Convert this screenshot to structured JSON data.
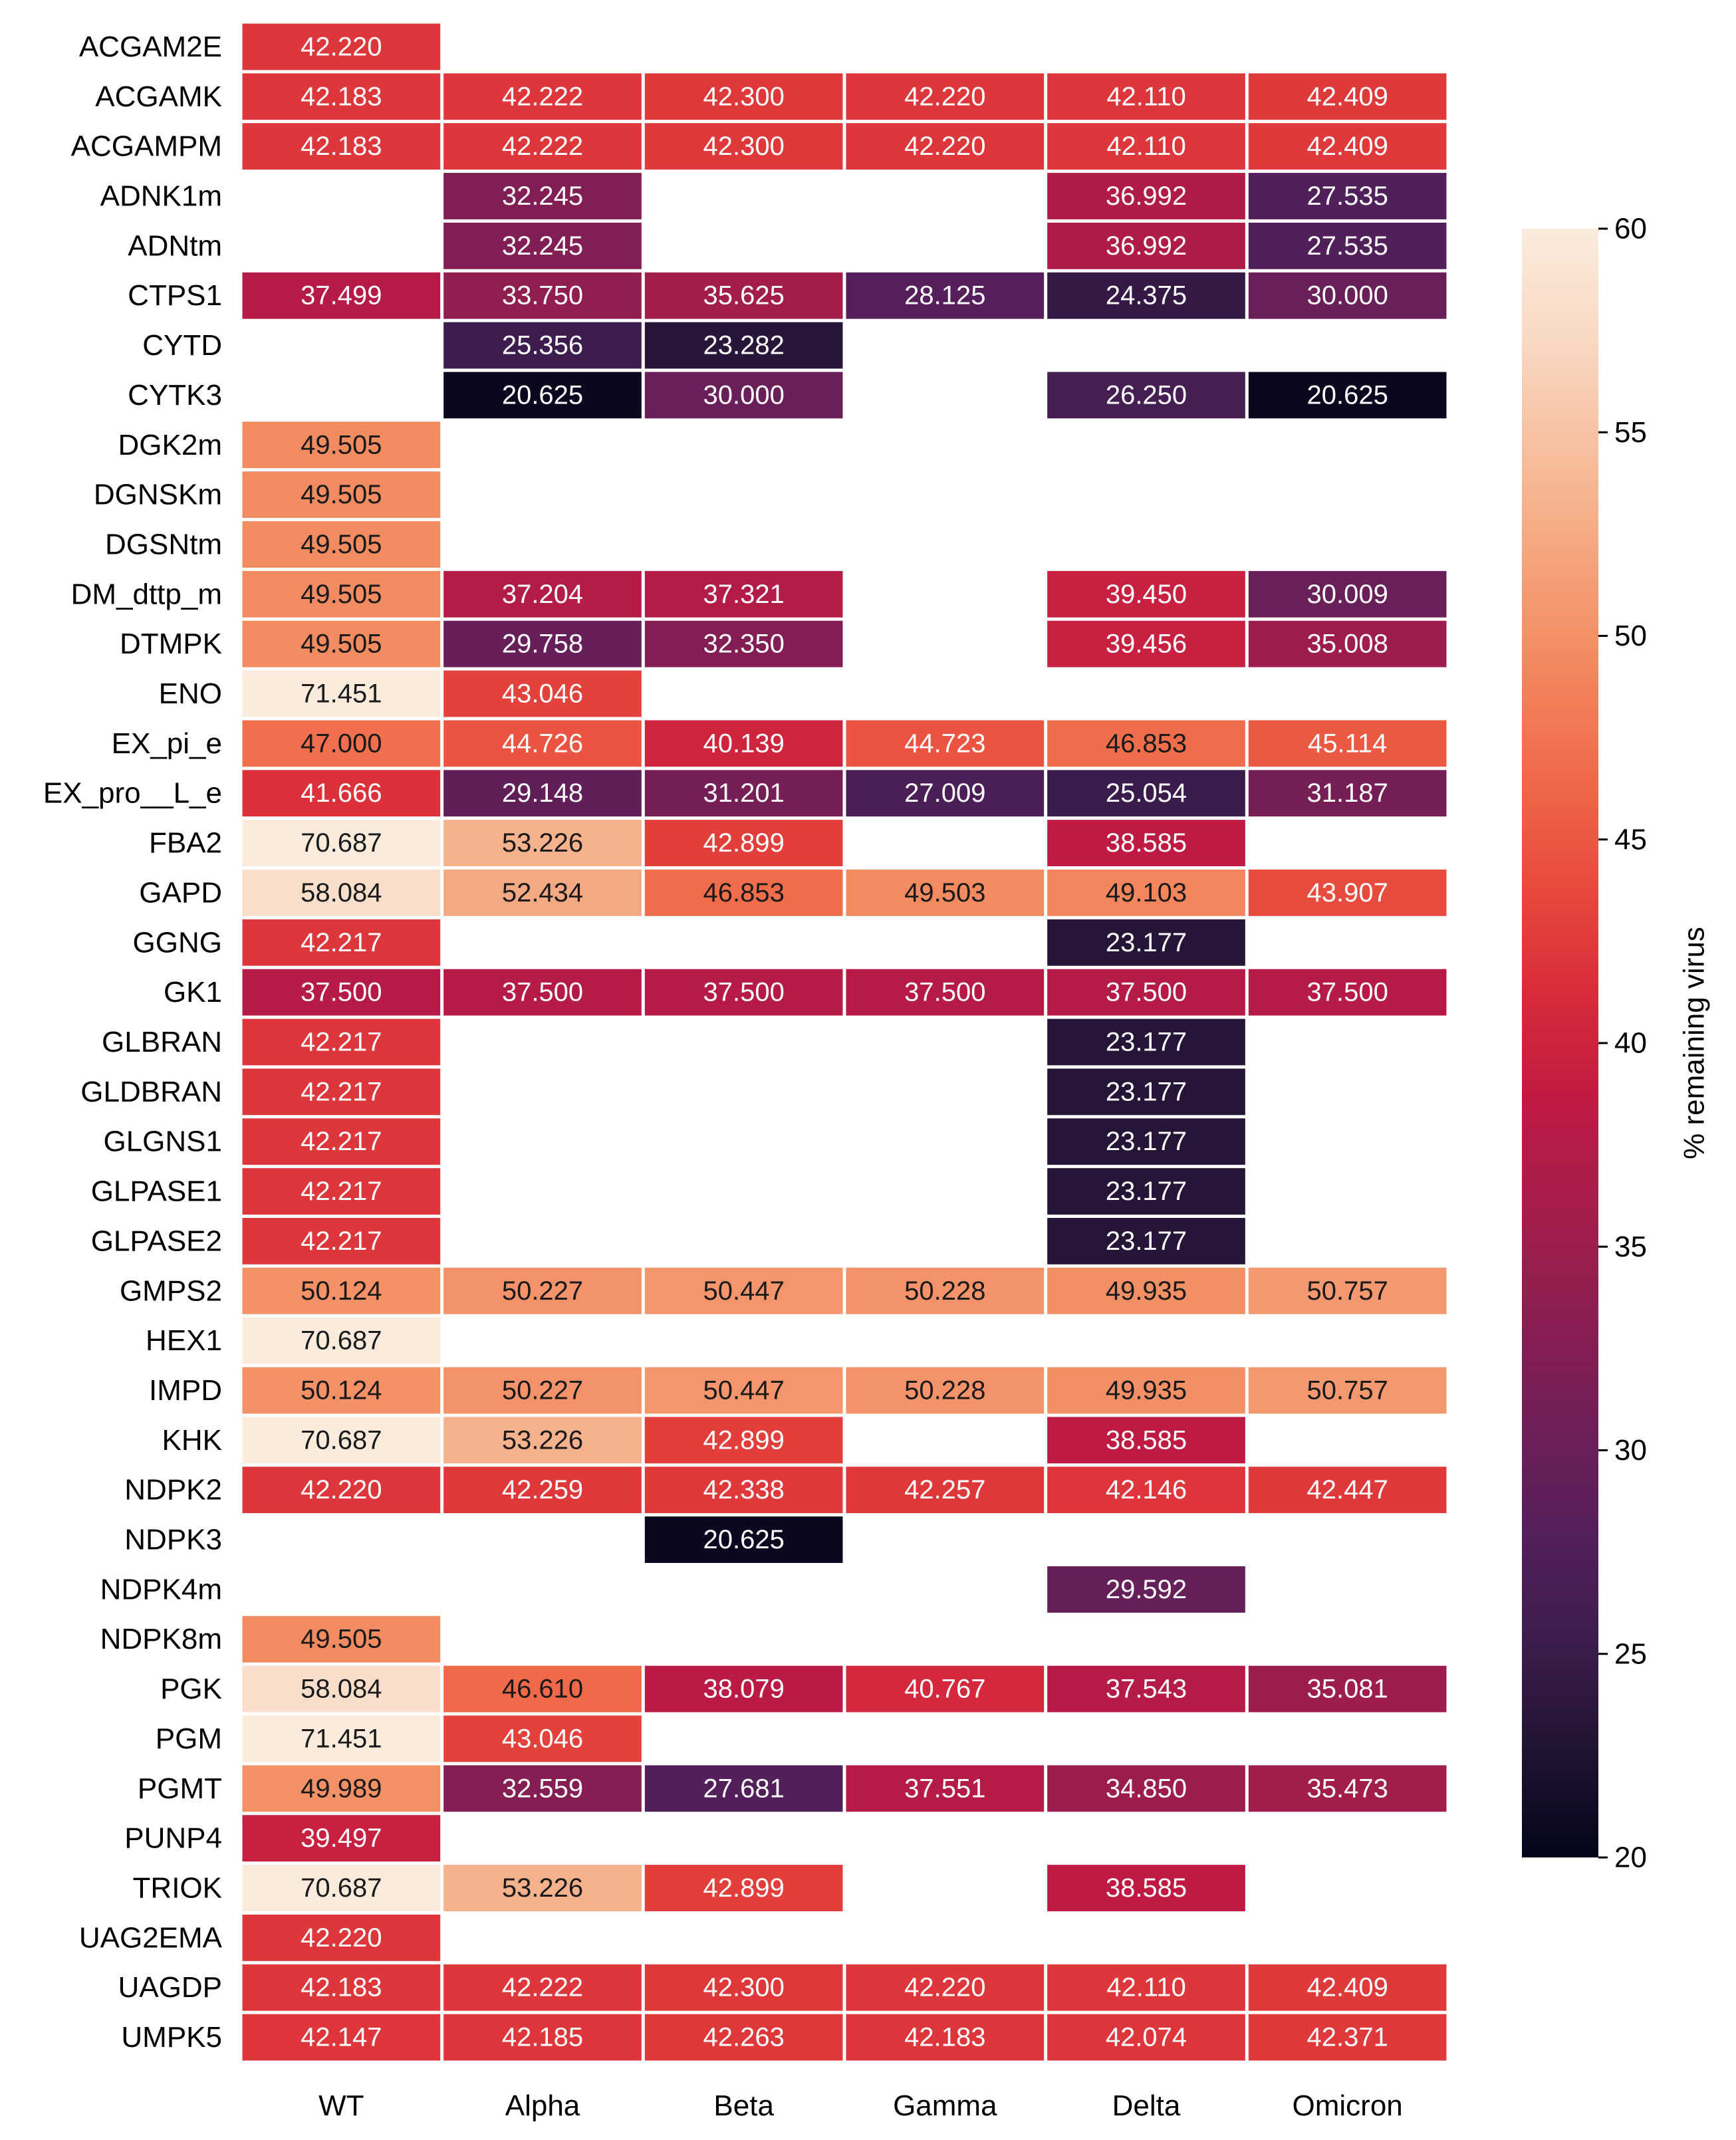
{
  "chart_data": {
    "type": "heatmap",
    "title": "",
    "xlabel": "",
    "ylabel": "",
    "columns": [
      "WT",
      "Alpha",
      "Beta",
      "Gamma",
      "Delta",
      "Omicron"
    ],
    "rows": [
      {
        "label": "ACGAM2E",
        "values": [
          42.22,
          null,
          null,
          null,
          null,
          null
        ],
        "text": [
          "42.220",
          "",
          "",
          "",
          "",
          ""
        ]
      },
      {
        "label": "ACGAMK",
        "values": [
          42.183,
          42.222,
          42.3,
          42.22,
          42.11,
          42.409
        ],
        "text": [
          "42.183",
          "42.222",
          "42.300",
          "42.220",
          "42.110",
          "42.409"
        ]
      },
      {
        "label": "ACGAMPM",
        "values": [
          42.183,
          42.222,
          42.3,
          42.22,
          42.11,
          42.409
        ],
        "text": [
          "42.183",
          "42.222",
          "42.300",
          "42.220",
          "42.110",
          "42.409"
        ]
      },
      {
        "label": "ADNK1m",
        "values": [
          null,
          32.245,
          null,
          null,
          36.992,
          27.535
        ],
        "text": [
          "",
          "32.245",
          "",
          "",
          "36.992",
          "27.535"
        ]
      },
      {
        "label": "ADNtm",
        "values": [
          null,
          32.245,
          null,
          null,
          36.992,
          27.535
        ],
        "text": [
          "",
          "32.245",
          "",
          "",
          "36.992",
          "27.535"
        ]
      },
      {
        "label": "CTPS1",
        "values": [
          37.499,
          33.75,
          35.625,
          28.125,
          24.375,
          30.0
        ],
        "text": [
          "37.499",
          "33.750",
          "35.625",
          "28.125",
          "24.375",
          "30.000"
        ]
      },
      {
        "label": "CYTD",
        "values": [
          null,
          25.356,
          23.282,
          null,
          null,
          null
        ],
        "text": [
          "",
          "25.356",
          "23.282",
          "",
          "",
          ""
        ]
      },
      {
        "label": "CYTK3",
        "values": [
          null,
          20.625,
          30.0,
          null,
          26.25,
          20.625
        ],
        "text": [
          "",
          "20.625",
          "30.000",
          "",
          "26.250",
          "20.625"
        ]
      },
      {
        "label": "DGK2m",
        "values": [
          49.505,
          null,
          null,
          null,
          null,
          null
        ],
        "text": [
          "49.505",
          "",
          "",
          "",
          "",
          ""
        ]
      },
      {
        "label": "DGNSKm",
        "values": [
          49.505,
          null,
          null,
          null,
          null,
          null
        ],
        "text": [
          "49.505",
          "",
          "",
          "",
          "",
          ""
        ]
      },
      {
        "label": "DGSNtm",
        "values": [
          49.505,
          null,
          null,
          null,
          null,
          null
        ],
        "text": [
          "49.505",
          "",
          "",
          "",
          "",
          ""
        ]
      },
      {
        "label": "DM_dttp_m",
        "values": [
          49.505,
          37.204,
          37.321,
          null,
          39.45,
          30.009
        ],
        "text": [
          "49.505",
          "37.204",
          "37.321",
          "",
          "39.450",
          "30.009"
        ]
      },
      {
        "label": "DTMPK",
        "values": [
          49.505,
          29.758,
          32.35,
          null,
          39.456,
          35.008
        ],
        "text": [
          "49.505",
          "29.758",
          "32.350",
          "",
          "39.456",
          "35.008"
        ]
      },
      {
        "label": "ENO",
        "values": [
          71.451,
          43.046,
          null,
          null,
          null,
          null
        ],
        "text": [
          "71.451",
          "43.046",
          "",
          "",
          "",
          ""
        ]
      },
      {
        "label": "EX_pi_e",
        "values": [
          47.0,
          44.726,
          40.139,
          44.723,
          46.853,
          45.114
        ],
        "text": [
          "47.000",
          "44.726",
          "40.139",
          "44.723",
          "46.853",
          "45.114"
        ]
      },
      {
        "label": "EX_pro__L_e",
        "values": [
          41.666,
          29.148,
          31.201,
          27.009,
          25.054,
          31.187
        ],
        "text": [
          "41.666",
          "29.148",
          "31.201",
          "27.009",
          "25.054",
          "31.187"
        ]
      },
      {
        "label": "FBA2",
        "values": [
          70.687,
          53.226,
          42.899,
          null,
          38.585,
          null
        ],
        "text": [
          "70.687",
          "53.226",
          "42.899",
          "",
          "38.585",
          ""
        ]
      },
      {
        "label": "GAPD",
        "values": [
          58.084,
          52.434,
          46.853,
          49.503,
          49.103,
          43.907
        ],
        "text": [
          "58.084",
          "52.434",
          "46.853",
          "49.503",
          "49.103",
          "43.907"
        ]
      },
      {
        "label": "GGNG",
        "values": [
          42.217,
          null,
          null,
          null,
          23.177,
          null
        ],
        "text": [
          "42.217",
          "",
          "",
          "",
          "23.177",
          ""
        ]
      },
      {
        "label": "GK1",
        "values": [
          37.5,
          37.5,
          37.5,
          37.5,
          37.5,
          37.5
        ],
        "text": [
          "37.500",
          "37.500",
          "37.500",
          "37.500",
          "37.500",
          "37.500"
        ]
      },
      {
        "label": "GLBRAN",
        "values": [
          42.217,
          null,
          null,
          null,
          23.177,
          null
        ],
        "text": [
          "42.217",
          "",
          "",
          "",
          "23.177",
          ""
        ]
      },
      {
        "label": "GLDBRAN",
        "values": [
          42.217,
          null,
          null,
          null,
          23.177,
          null
        ],
        "text": [
          "42.217",
          "",
          "",
          "",
          "23.177",
          ""
        ]
      },
      {
        "label": "GLGNS1",
        "values": [
          42.217,
          null,
          null,
          null,
          23.177,
          null
        ],
        "text": [
          "42.217",
          "",
          "",
          "",
          "23.177",
          ""
        ]
      },
      {
        "label": "GLPASE1",
        "values": [
          42.217,
          null,
          null,
          null,
          23.177,
          null
        ],
        "text": [
          "42.217",
          "",
          "",
          "",
          "23.177",
          ""
        ]
      },
      {
        "label": "GLPASE2",
        "values": [
          42.217,
          null,
          null,
          null,
          23.177,
          null
        ],
        "text": [
          "42.217",
          "",
          "",
          "",
          "23.177",
          ""
        ]
      },
      {
        "label": "GMPS2",
        "values": [
          50.124,
          50.227,
          50.447,
          50.228,
          49.935,
          50.757
        ],
        "text": [
          "50.124",
          "50.227",
          "50.447",
          "50.228",
          "49.935",
          "50.757"
        ]
      },
      {
        "label": "HEX1",
        "values": [
          70.687,
          null,
          null,
          null,
          null,
          null
        ],
        "text": [
          "70.687",
          "",
          "",
          "",
          "",
          ""
        ]
      },
      {
        "label": "IMPD",
        "values": [
          50.124,
          50.227,
          50.447,
          50.228,
          49.935,
          50.757
        ],
        "text": [
          "50.124",
          "50.227",
          "50.447",
          "50.228",
          "49.935",
          "50.757"
        ]
      },
      {
        "label": "KHK",
        "values": [
          70.687,
          53.226,
          42.899,
          null,
          38.585,
          null
        ],
        "text": [
          "70.687",
          "53.226",
          "42.899",
          "",
          "38.585",
          ""
        ]
      },
      {
        "label": "NDPK2",
        "values": [
          42.22,
          42.259,
          42.338,
          42.257,
          42.146,
          42.447
        ],
        "text": [
          "42.220",
          "42.259",
          "42.338",
          "42.257",
          "42.146",
          "42.447"
        ]
      },
      {
        "label": "NDPK3",
        "values": [
          null,
          null,
          20.625,
          null,
          null,
          null
        ],
        "text": [
          "",
          "",
          "20.625",
          "",
          "",
          ""
        ]
      },
      {
        "label": "NDPK4m",
        "values": [
          null,
          null,
          null,
          null,
          29.592,
          null
        ],
        "text": [
          "",
          "",
          "",
          "",
          "29.592",
          ""
        ]
      },
      {
        "label": "NDPK8m",
        "values": [
          49.505,
          null,
          null,
          null,
          null,
          null
        ],
        "text": [
          "49.505",
          "",
          "",
          "",
          "",
          ""
        ]
      },
      {
        "label": "PGK",
        "values": [
          58.084,
          46.61,
          38.079,
          40.767,
          37.543,
          35.081
        ],
        "text": [
          "58.084",
          "46.610",
          "38.079",
          "40.767",
          "37.543",
          "35.081"
        ]
      },
      {
        "label": "PGM",
        "values": [
          71.451,
          43.046,
          null,
          null,
          null,
          null
        ],
        "text": [
          "71.451",
          "43.046",
          "",
          "",
          "",
          ""
        ]
      },
      {
        "label": "PGMT",
        "values": [
          49.989,
          32.559,
          27.681,
          37.551,
          34.85,
          35.473
        ],
        "text": [
          "49.989",
          "32.559",
          "27.681",
          "37.551",
          "34.850",
          "35.473"
        ]
      },
      {
        "label": "PUNP4",
        "values": [
          39.497,
          null,
          null,
          null,
          null,
          null
        ],
        "text": [
          "39.497",
          "",
          "",
          "",
          "",
          ""
        ]
      },
      {
        "label": "TRIOK",
        "values": [
          70.687,
          53.226,
          42.899,
          null,
          38.585,
          null
        ],
        "text": [
          "70.687",
          "53.226",
          "42.899",
          "",
          "38.585",
          ""
        ]
      },
      {
        "label": "UAG2EMA",
        "values": [
          42.22,
          null,
          null,
          null,
          null,
          null
        ],
        "text": [
          "42.220",
          "",
          "",
          "",
          "",
          ""
        ]
      },
      {
        "label": "UAGDP",
        "values": [
          42.183,
          42.222,
          42.3,
          42.22,
          42.11,
          42.409
        ],
        "text": [
          "42.183",
          "42.222",
          "42.300",
          "42.220",
          "42.110",
          "42.409"
        ]
      },
      {
        "label": "UMPK5",
        "values": [
          42.147,
          42.185,
          42.263,
          42.183,
          42.074,
          42.371
        ],
        "text": [
          "42.147",
          "42.185",
          "42.263",
          "42.183",
          "42.074",
          "42.371"
        ]
      }
    ],
    "colorbar": {
      "label": "% remaining virus",
      "vmin": 20,
      "vmax": 60,
      "ticks": [
        20,
        25,
        30,
        35,
        40,
        45,
        50,
        55,
        60
      ],
      "colormap": "rocket",
      "stops": [
        "#03051a",
        "#221331",
        "#3c1d4e",
        "#551f5c",
        "#701f57",
        "#8c1e52",
        "#a61d4b",
        "#c01a42",
        "#d92d3a",
        "#e84c3d",
        "#f06b4a",
        "#f3895e",
        "#f5a57e",
        "#f7c09f",
        "#f9d9c4",
        "#faebdd"
      ]
    },
    "grid": false,
    "legend": "right"
  }
}
